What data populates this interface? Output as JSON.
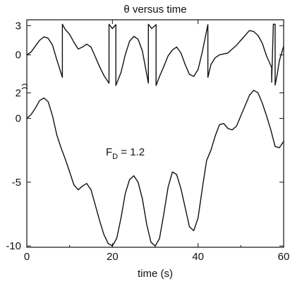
{
  "chart_data": {
    "type": "line",
    "title": "θ versus time",
    "xlabel": "time (s)",
    "ylabel": "",
    "annotation": "F_D = 1.2",
    "annotation_parts": {
      "base": "F",
      "sub": "D",
      "rest": " = 1.2"
    },
    "grid": false,
    "xlim": [
      0,
      60
    ],
    "x_ticks": [
      0,
      20,
      40,
      60
    ],
    "x_tick_labels": [
      "0",
      "20",
      "40",
      "60"
    ],
    "panels": [
      {
        "name": "wrapped",
        "ylim": [
          -3.5,
          3.6
        ],
        "y_ticks": [
          3,
          0
        ],
        "y_tick_labels": [
          "3",
          "0"
        ],
        "series": [
          {
            "x": [
              0,
              1,
              2,
              3,
              4,
              5,
              6,
              7,
              8.3,
              8.3,
              9,
              10,
              11,
              12,
              13,
              14,
              15,
              16,
              17,
              18,
              19.2,
              19.2,
              20,
              20.8,
              20.8,
              22,
              23,
              24,
              25,
              26,
              27,
              28.4,
              28.4,
              29.2,
              30.2,
              30.2,
              31,
              32,
              33,
              34,
              35,
              36,
              37,
              38,
              39,
              40,
              41,
              42.3,
              42.3,
              43,
              44,
              45,
              46,
              47,
              48,
              49,
              50,
              51,
              52,
              53,
              54,
              55,
              56,
              57.2,
              57.2,
              57.6,
              58,
              58,
              58.5,
              59,
              60
            ],
            "y": [
              0,
              0.3,
              0.9,
              1.5,
              1.85,
              1.7,
              1.0,
              -0.5,
              -2.3,
              3.14,
              2.6,
              2.1,
              1.3,
              0.6,
              0.8,
              1.1,
              0.8,
              -0.2,
              -1.2,
              -2.1,
              -2.9,
              3.14,
              2.7,
              3.1,
              -3.14,
              -1.8,
              0.0,
              1.4,
              1.9,
              1.6,
              0.4,
              -2.9,
              3.14,
              2.7,
              3.1,
              -3.14,
              -2.2,
              -1.2,
              -0.1,
              0.5,
              0.8,
              0.2,
              -1.0,
              -2.0,
              -2.2,
              -1.5,
              0.3,
              3.1,
              -2.3,
              -1.0,
              -0.3,
              0.0,
              0.1,
              0.2,
              0.6,
              1.0,
              1.5,
              2.0,
              2.5,
              2.4,
              2.0,
              1.2,
              -0.1,
              -1.3,
              -2.8,
              3.14,
              3.14,
              -3.1,
              -2.0,
              -0.6,
              0.9
            ]
          }
        ]
      },
      {
        "name": "unwrapped",
        "ylim": [
          -10.1,
          2.3
        ],
        "y_ticks": [
          2,
          0,
          -5,
          -10
        ],
        "y_tick_labels": [
          "2",
          "0",
          "-5",
          "-10"
        ],
        "series": [
          {
            "x": [
              0,
              1,
              2,
              3,
              4,
              5,
              6,
              7,
              8,
              9,
              10,
              11,
              12,
              13,
              14,
              15,
              16,
              17,
              18,
              19,
              20,
              21,
              22,
              23,
              24,
              25,
              26,
              27,
              28,
              29,
              30,
              31,
              32,
              33,
              34,
              35,
              36,
              37,
              38,
              39,
              40,
              41,
              42,
              43,
              44,
              45,
              46,
              47,
              48,
              49,
              50,
              51,
              52,
              53,
              54,
              55,
              56,
              57,
              58,
              59,
              60
            ],
            "y": [
              0,
              0.3,
              0.8,
              1.4,
              1.6,
              1.3,
              0.2,
              -1.3,
              -2.3,
              -3.2,
              -4.2,
              -5.2,
              -5.6,
              -5.3,
              -5.1,
              -5.6,
              -6.8,
              -8.0,
              -9.1,
              -9.8,
              -10.0,
              -9.4,
              -7.8,
              -5.9,
              -4.8,
              -4.5,
              -5.0,
              -6.3,
              -8.3,
              -9.7,
              -10.0,
              -9.4,
              -7.5,
              -5.4,
              -4.2,
              -4.4,
              -5.5,
              -7.0,
              -8.5,
              -8.8,
              -7.8,
              -5.5,
              -3.3,
              -2.5,
              -1.4,
              -0.5,
              -0.4,
              -0.8,
              -0.9,
              -0.6,
              0.2,
              1.0,
              1.8,
              2.2,
              2.0,
              1.2,
              0.2,
              -0.9,
              -2.2,
              -2.3,
              -1.8
            ]
          }
        ]
      }
    ]
  }
}
